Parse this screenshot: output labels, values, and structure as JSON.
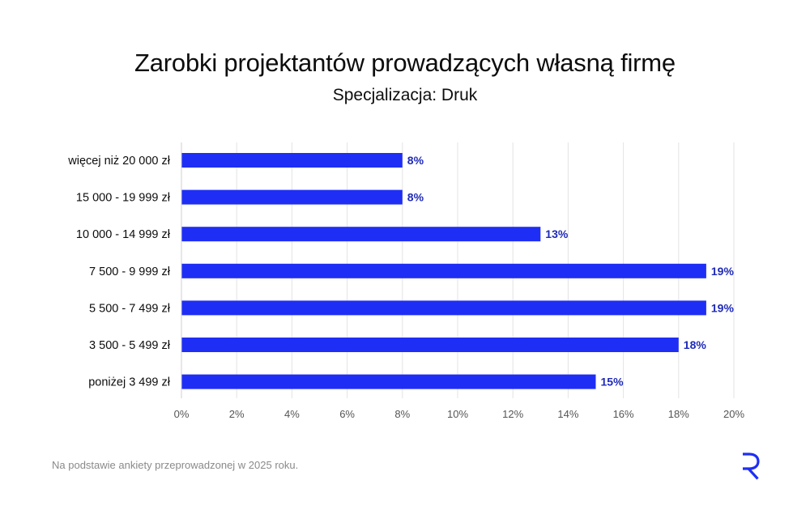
{
  "title": "Zarobki projektantów prowadzących własną firmę",
  "subtitle": "Specjalizacja: Druk",
  "footnote": "Na podstawie ankiety przeprowadzonej w 2025 roku.",
  "colors": {
    "bar": "#1f2ef5",
    "value_label": "#1f2ab8",
    "grid": "#e3e3e3",
    "text": "#0d0d0d",
    "tick": "#555555"
  },
  "logo_icon": "r-logo-icon",
  "chart_data": {
    "type": "bar",
    "orientation": "horizontal",
    "title": "Zarobki projektantów prowadzących własną firmę",
    "subtitle": "Specjalizacja: Druk",
    "categories": [
      "więcej niż 20 000 zł",
      "15 000 - 19 999 zł",
      "10 000 - 14 999 zł",
      "7 500 - 9 999 zł",
      "5 500 - 7 499 zł",
      "3 500 - 5 499 zł",
      "poniżej 3 499 zł"
    ],
    "values": [
      8,
      8,
      13,
      19,
      19,
      18,
      15
    ],
    "value_labels": [
      "8%",
      "8%",
      "13%",
      "19%",
      "19%",
      "18%",
      "15%"
    ],
    "xlim": [
      0,
      20
    ],
    "xticks": [
      "0%",
      "2%",
      "4%",
      "6%",
      "8%",
      "10%",
      "12%",
      "14%",
      "16%",
      "18%",
      "20%"
    ],
    "xlabel": "",
    "ylabel": "",
    "grid": "vertical",
    "legend": "none"
  }
}
